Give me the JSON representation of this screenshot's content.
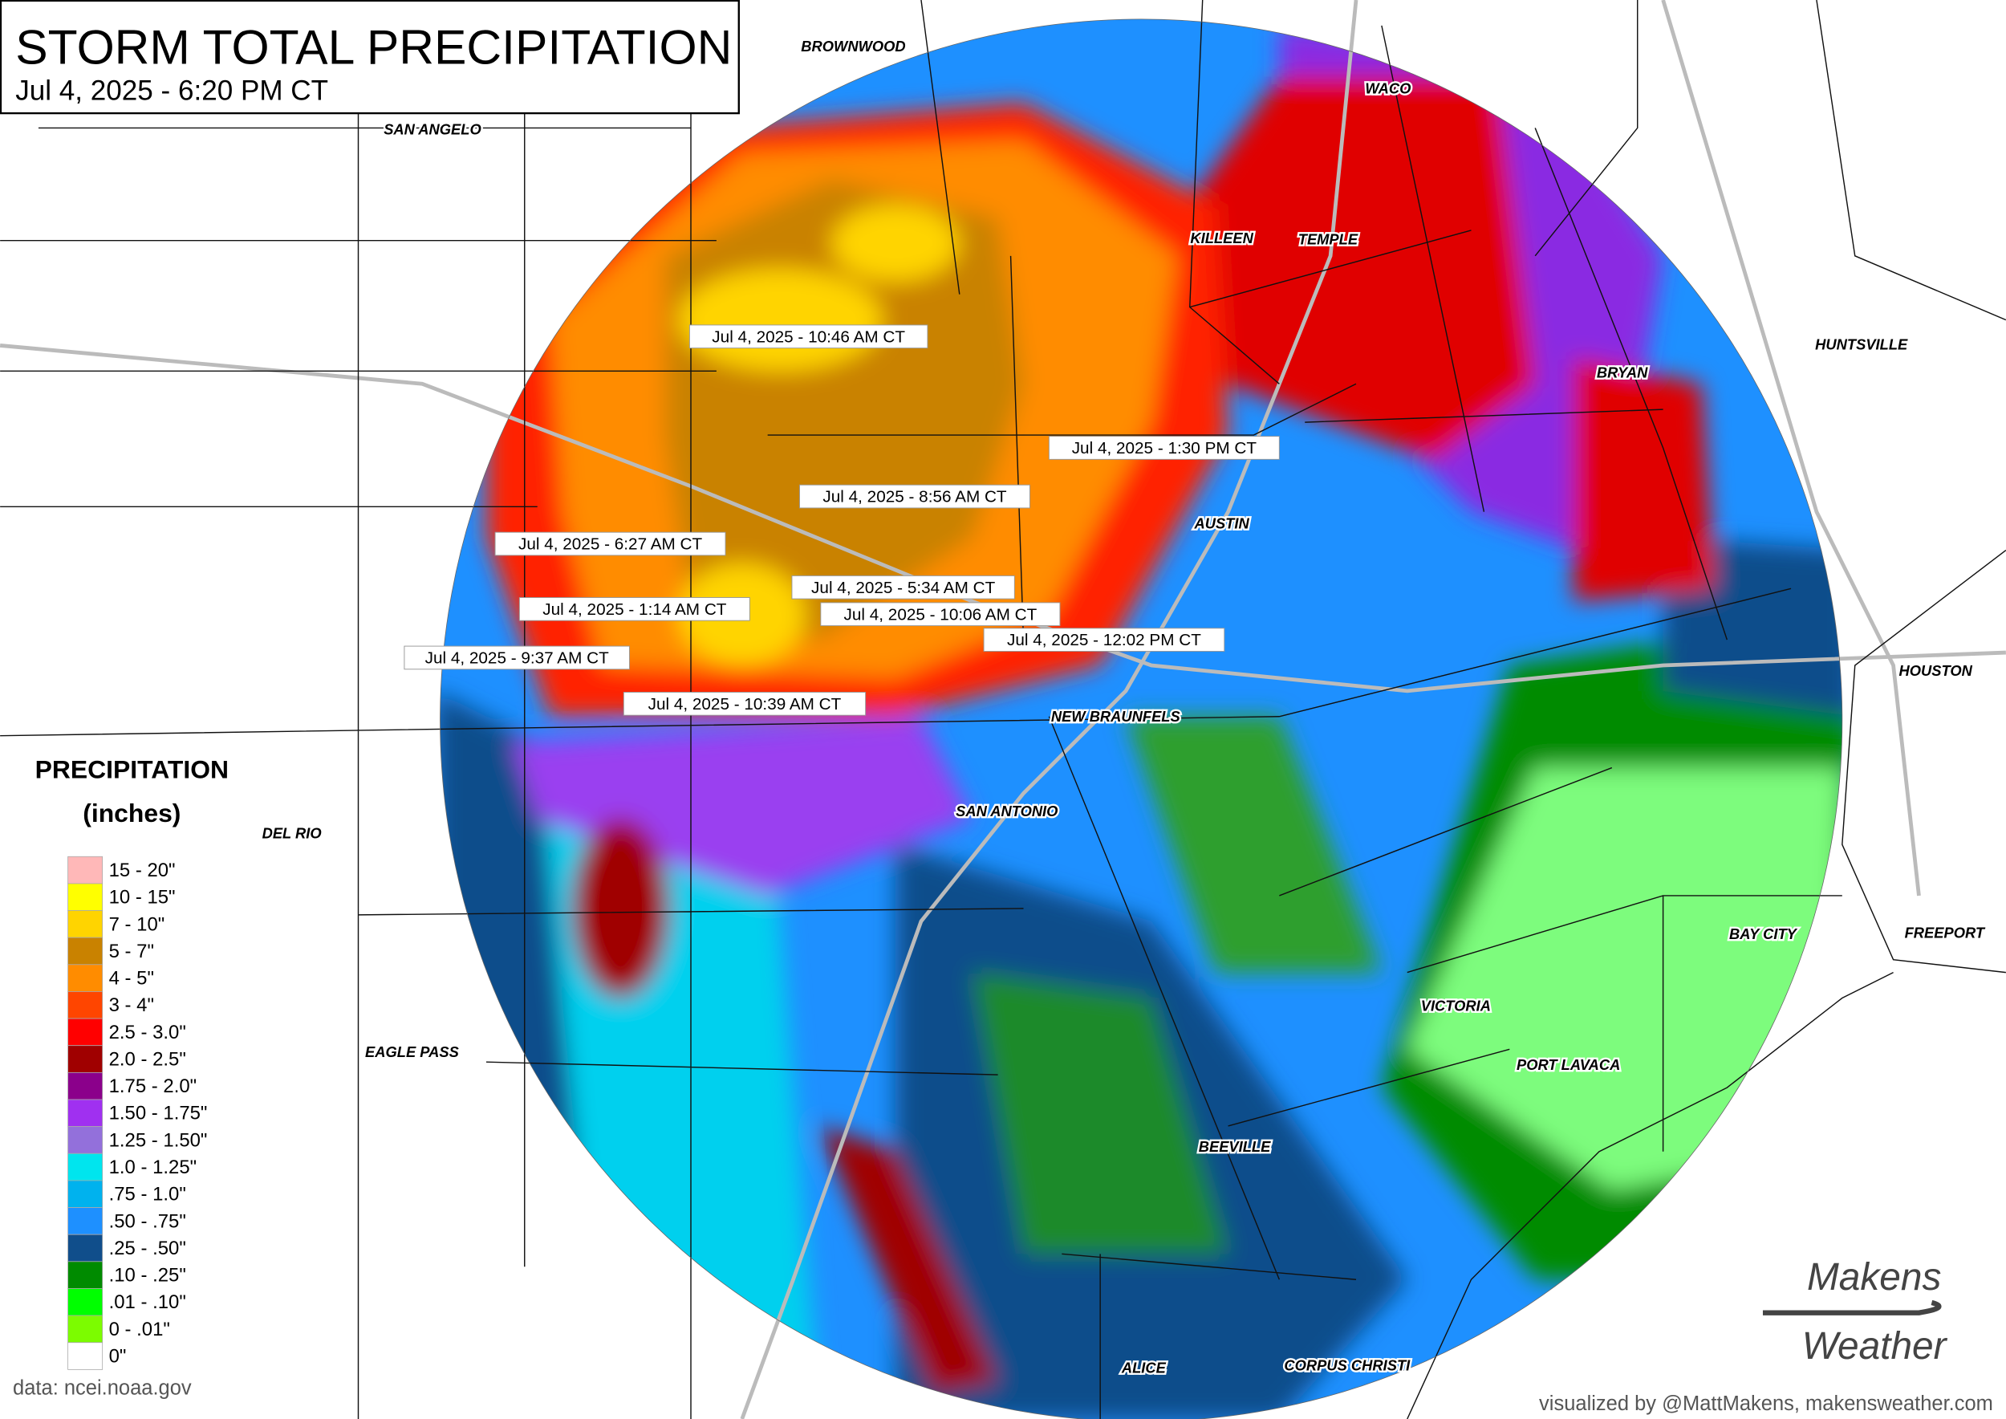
{
  "header": {
    "title": "STORM TOTAL PRECIPITATION",
    "subtitle": "Jul 4, 2025 - 6:20 PM CT"
  },
  "cities": [
    "BROWNWOOD",
    "WACO",
    "SAN ANGELO",
    "KILLEEN",
    "TEMPLE",
    "HUNTSVILLE",
    "BRYAN",
    "AUSTIN",
    "HOUSTON",
    "NEW BRAUNFELS",
    "SAN ANTONIO",
    "DEL RIO",
    "FREEPORT",
    "BAY CITY",
    "VICTORIA",
    "EAGLE PASS",
    "PORT LAVACA",
    "BEEVILLE",
    "ALICE",
    "CORPUS CHRISTI"
  ],
  "timestamps": [
    "Jul 4, 2025 - 10:46 AM CT",
    "Jul 4, 2025 - 1:30 PM CT",
    "Jul 4, 2025 - 8:56 AM CT",
    "Jul 4, 2025 - 6:27 AM CT",
    "Jul 4, 2025 - 5:34 AM CT",
    "Jul 4, 2025 - 1:14 AM CT",
    "Jul 4, 2025 - 10:06 AM CT",
    "Jul 4, 2025 - 12:02 PM CT",
    "Jul 4, 2025 - 9:37 AM CT",
    "Jul 4, 2025 - 10:39 AM CT"
  ],
  "legend": {
    "title": "PRECIPITATION",
    "units": "(inches)",
    "items": [
      {
        "label": "15 - 20\"",
        "color": "#ffb8b8"
      },
      {
        "label": "10 - 15\"",
        "color": "#ffff00"
      },
      {
        "label": "7 - 10\"",
        "color": "#ffd400"
      },
      {
        "label": "5 - 7\"",
        "color": "#c98200"
      },
      {
        "label": "4 - 5\"",
        "color": "#ff8c00"
      },
      {
        "label": "3 - 4\"",
        "color": "#ff4500"
      },
      {
        "label": "2.5 - 3.0\"",
        "color": "#ff0000"
      },
      {
        "label": "2.0 - 2.5\"",
        "color": "#a00000"
      },
      {
        "label": "1.75 - 2.0\"",
        "color": "#8b008b"
      },
      {
        "label": "1.50 - 1.75\"",
        "color": "#a030f0"
      },
      {
        "label": "1.25 - 1.50\"",
        "color": "#9370db"
      },
      {
        "label": "1.0 - 1.25\"",
        "color": "#00e5ee"
      },
      {
        "label": ".75 - 1.0\"",
        "color": "#00b2ee"
      },
      {
        "label": ".50 - .75\"",
        "color": "#1e90ff"
      },
      {
        "label": ".25 - .50\"",
        "color": "#104e8b"
      },
      {
        "label": ".10 - .25\"",
        "color": "#008b00"
      },
      {
        "label": ".01 - .10\"",
        "color": "#00ff00"
      },
      {
        "label": "0 - .01\"",
        "color": "#7cfc00"
      },
      {
        "label": "0\"",
        "color": "#ffffff"
      }
    ]
  },
  "source": "data: ncei.noaa.gov",
  "credit": "visualized by @MattMakens, makensweather.com",
  "logo": {
    "top": "Makens",
    "bottom": "Weather"
  }
}
